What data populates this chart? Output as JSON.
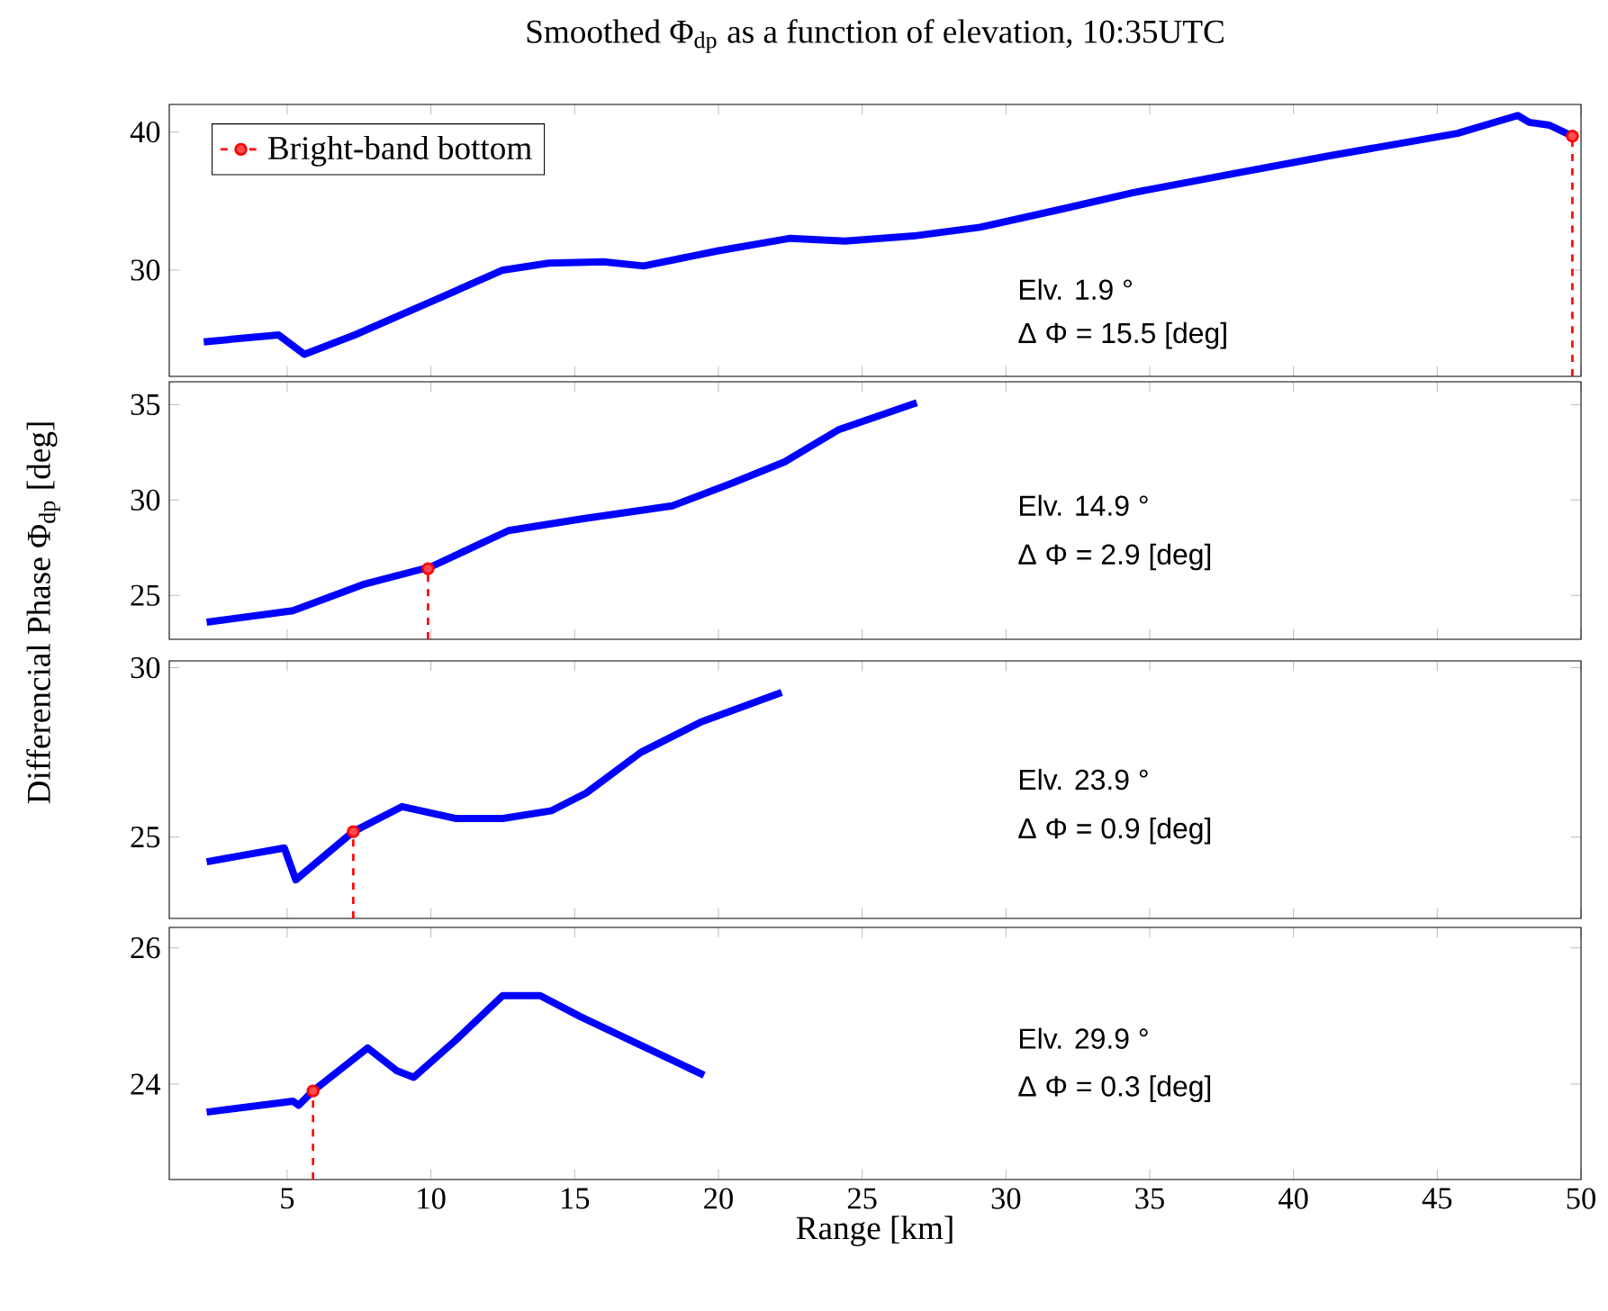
{
  "chart_data": [
    {
      "type": "line",
      "title": "Smoothed Φ$_{dp}$ as a function of elevation, 10:35UTC",
      "ylabel": "Differencial Phase Φ$_{dp}$ [deg]",
      "xlim": [
        0.9,
        50
      ],
      "ylim": [
        22.3,
        42
      ],
      "xticks": [
        5,
        10,
        15,
        20,
        25,
        30,
        35,
        40,
        45,
        50
      ],
      "yticks": [
        30,
        40
      ],
      "tick_labels": "y",
      "legend": "top left",
      "annotations": [
        "Elv. 1.9 °",
        "Δ Φ = 15.5 [deg]"
      ],
      "series": [
        {
          "color": "#0000ff",
          "x": [
            2.1,
            4.7,
            5.6,
            7.35,
            10.0,
            12.5,
            14.1,
            16.0,
            17.4,
            20.0,
            22.5,
            24.4,
            26.9,
            29.1,
            31.9,
            34.4,
            38.2,
            41.3,
            45.7,
            47.8,
            48.2,
            48.9,
            49.6
          ],
          "values": [
            24.8,
            25.3,
            23.9,
            25.3,
            27.7,
            30.0,
            30.5,
            30.6,
            30.3,
            31.4,
            32.3,
            32.1,
            32.5,
            33.1,
            34.4,
            35.6,
            37.1,
            38.3,
            39.9,
            41.2,
            40.7,
            40.5,
            39.8
          ]
        },
        {
          "name": "Bright-band bottom",
          "color": "#ff0000",
          "marker": "circle",
          "line_style": "dashed",
          "x": [
            49.7,
            49.7
          ],
          "values": [
            22.3,
            39.7
          ]
        }
      ]
    },
    {
      "type": "line",
      "xlim": [
        0.9,
        50
      ],
      "ylim": [
        22.7,
        36.2
      ],
      "xticks": [
        5,
        10,
        15,
        20,
        25,
        30,
        35,
        40,
        45,
        50
      ],
      "yticks": [
        25,
        30,
        35
      ],
      "tick_labels": "y",
      "annotations": [
        "Elv. 14.9 °",
        "Δ Φ = 2.9 [deg]"
      ],
      "series": [
        {
          "color": "#0000ff",
          "x": [
            2.2,
            5.2,
            7.7,
            10.0,
            12.7,
            15.2,
            18.4,
            20.5,
            22.3,
            24.2,
            26.9
          ],
          "values": [
            23.6,
            24.2,
            25.6,
            26.5,
            28.4,
            29.0,
            29.7,
            30.9,
            32.0,
            33.7,
            35.1
          ]
        },
        {
          "color": "#ff0000",
          "marker": "circle",
          "line_style": "dashed",
          "x": [
            9.9,
            9.9
          ],
          "values": [
            22.7,
            26.4
          ]
        }
      ]
    },
    {
      "type": "line",
      "xlim": [
        0.9,
        50
      ],
      "ylim": [
        22.6,
        30.2
      ],
      "xticks": [
        5,
        10,
        15,
        20,
        25,
        30,
        35,
        40,
        45,
        50
      ],
      "yticks": [
        25,
        30
      ],
      "tick_labels": "y",
      "annotations": [
        "Elv. 23.9 °",
        "Δ Φ = 0.9 [deg]"
      ],
      "series": [
        {
          "color": "#0000ff",
          "x": [
            2.2,
            4.9,
            5.3,
            7.3,
            9.0,
            10.85,
            12.5,
            14.2,
            15.4,
            17.3,
            19.4,
            22.2
          ],
          "values": [
            24.27,
            24.68,
            23.74,
            25.16,
            25.9,
            25.55,
            25.55,
            25.78,
            26.3,
            27.5,
            28.4,
            29.27
          ]
        },
        {
          "color": "#ff0000",
          "marker": "circle",
          "line_style": "dashed",
          "x": [
            7.3,
            7.3
          ],
          "values": [
            22.6,
            25.16
          ]
        }
      ]
    },
    {
      "type": "line",
      "xlabel": "Range [km]",
      "xlim": [
        0.9,
        50
      ],
      "ylim": [
        22.6,
        26.3
      ],
      "xticks": [
        5,
        10,
        15,
        20,
        25,
        30,
        35,
        40,
        45,
        50
      ],
      "yticks": [
        24,
        26
      ],
      "annotations": [
        "Elv. 29.9 °",
        "Δ Φ = 0.3 [deg]"
      ],
      "series": [
        {
          "color": "#0000ff",
          "x": [
            2.2,
            5.2,
            5.4,
            5.9,
            7.8,
            8.8,
            9.4,
            10.85,
            12.5,
            13.8,
            15.2,
            19.5
          ],
          "values": [
            23.59,
            23.75,
            23.69,
            23.9,
            24.53,
            24.2,
            24.1,
            24.64,
            25.3,
            25.3,
            24.99,
            24.13
          ]
        },
        {
          "color": "#ff0000",
          "marker": "circle",
          "line_style": "dashed",
          "x": [
            5.9,
            5.9
          ],
          "values": [
            22.6,
            23.9
          ]
        }
      ]
    }
  ]
}
